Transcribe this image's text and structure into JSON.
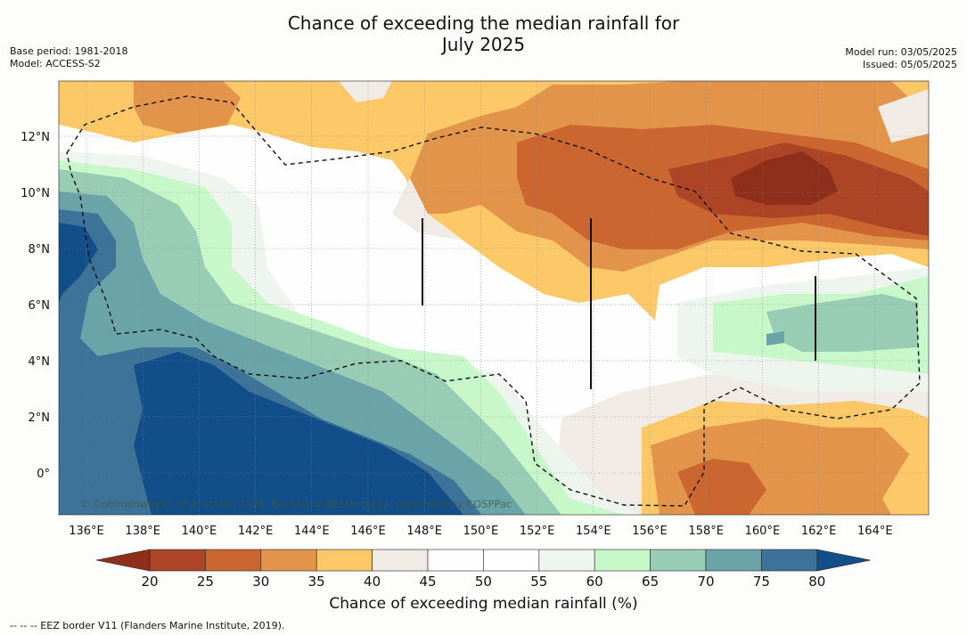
{
  "title_line1": "Chance of exceeding the median rainfall for",
  "title_line2": "July 2025",
  "base_period": "Base period: 1981-2018",
  "model": "Model: ACCESS-S2",
  "model_run": "Model run: 03/05/2025",
  "issued": "Issued: 05/05/2025",
  "copyright": "© Commonwealth of Australia 2025, Bureau of Meteorology, supported by COSPPac",
  "lon_labels": [
    "136°E",
    "138°E",
    "140°E",
    "142°E",
    "144°E",
    "146°E",
    "148°E",
    "150°E",
    "152°E",
    "154°E",
    "156°E",
    "158°E",
    "160°E",
    "162°E",
    "164°E"
  ],
  "lat_labels": [
    "12°N",
    "10°N",
    "8°N",
    "6°N",
    "4°N",
    "2°N",
    "0°"
  ],
  "colorbar": {
    "title": "Chance of exceeding median rainfall (%)",
    "levels": [
      "20",
      "25",
      "30",
      "35",
      "40",
      "45",
      "50",
      "55",
      "60",
      "65",
      "70",
      "75",
      "80"
    ],
    "colors": [
      "#8e2f1c",
      "#ad4426",
      "#cc6630",
      "#e2954a",
      "#fdc868",
      "#f1ebe6",
      "#fefefe",
      "#ffffff",
      "#eef5ee",
      "#c8f8c9",
      "#98ccb5",
      "#6aa4a8",
      "#3d7398",
      "#124e8a"
    ]
  },
  "footnote": "-- -- -- EEZ border V11 (Flanders Marine Institute, 2019)."
}
